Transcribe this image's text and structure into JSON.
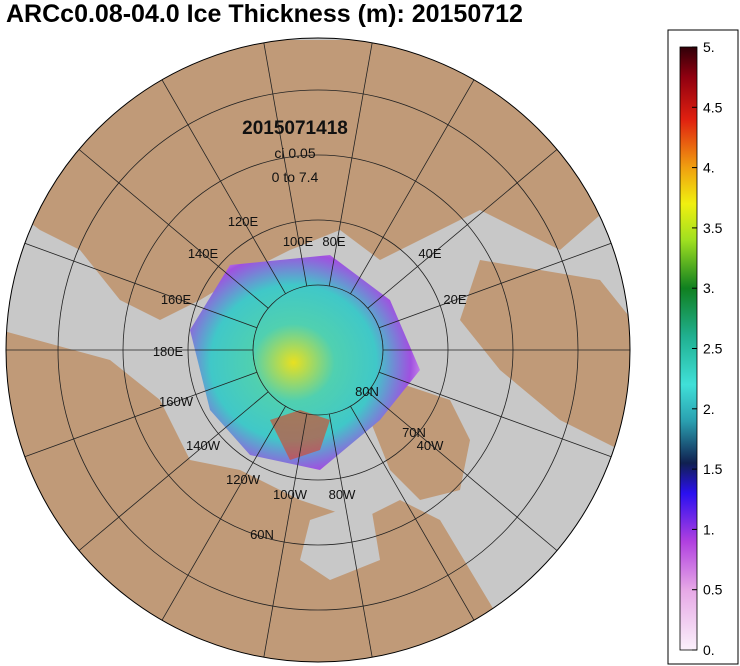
{
  "title": "ARCc0.08-04.0 Ice Thickness (m): 20150712",
  "annotations": [
    "2015071418",
    "ci 0.05",
    "0 to 7.4"
  ],
  "map_labels": [
    "120E",
    "140E",
    "100E",
    "80E",
    "40E",
    "20E",
    "160E",
    "180E",
    "160W",
    "140W",
    "120W",
    "100W",
    "80W",
    "60N",
    "80N",
    "70N",
    "40W"
  ],
  "colorbar": {
    "range": [
      0,
      5
    ],
    "ticks": [
      {
        "value": 0,
        "label": "0."
      },
      0.5,
      {
        "value": 1,
        "label": "1."
      },
      1.5,
      {
        "value": 2,
        "label": "2."
      },
      2.5,
      {
        "value": 3,
        "label": "3."
      },
      3.5,
      {
        "value": 4,
        "label": "4."
      },
      4.5,
      {
        "value": 5,
        "label": "5."
      }
    ]
  }
}
